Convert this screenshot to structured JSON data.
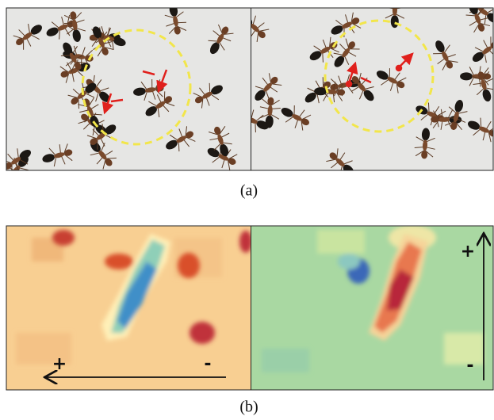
{
  "panel_a": {
    "caption": "(a)"
  },
  "panel_b": {
    "caption": "(b)",
    "left_plus": "+",
    "left_minus": "-",
    "right_plus": "+",
    "right_minus": "-"
  }
}
